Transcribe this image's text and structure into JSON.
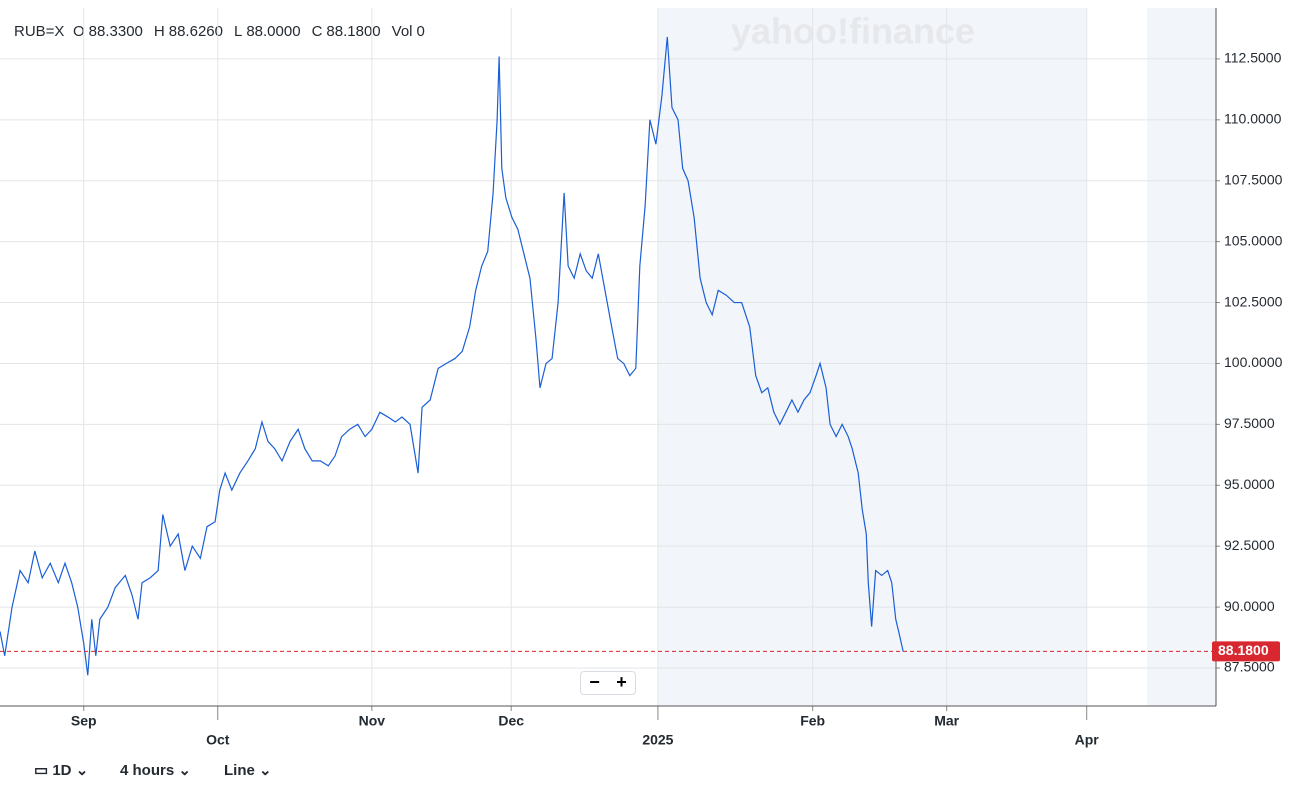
{
  "header": {
    "symbol": "RUB=X",
    "stats": [
      {
        "label": "O",
        "value": "88.3300"
      },
      {
        "label": "H",
        "value": "88.6260"
      },
      {
        "label": "L",
        "value": "88.0000"
      },
      {
        "label": "C",
        "value": "88.1800"
      },
      {
        "label": "Vol",
        "value": "0"
      }
    ]
  },
  "watermark": "yahoo!finance",
  "toolbar": {
    "range": "1D",
    "interval": "4 hours",
    "chart_type": "Line",
    "zoom_out": "−",
    "zoom_in": "+"
  },
  "chart_data": {
    "type": "line",
    "color": "#1a5fd6",
    "grid": true,
    "xlim": [
      0,
      181.5
    ],
    "xticks": [
      {
        "value": 12.5,
        "label": "Sep"
      },
      {
        "value": 32.5,
        "label": "Oct"
      },
      {
        "value": 55.5,
        "label": "Nov"
      },
      {
        "value": 76.3,
        "label": "Dec"
      },
      {
        "value": 98.2,
        "label": "2025"
      },
      {
        "value": 121.3,
        "label": "Feb"
      },
      {
        "value": 141.3,
        "label": "Mar"
      },
      {
        "value": 162.2,
        "label": "Apr"
      }
    ],
    "ylim": [
      85.94,
      114.59
    ],
    "yticks": [
      {
        "value": 87.5,
        "label": "87.5000"
      },
      {
        "value": 90,
        "label": "90.0000"
      },
      {
        "value": 92.5,
        "label": "92.5000"
      },
      {
        "value": 95,
        "label": "95.0000"
      },
      {
        "value": 97.5,
        "label": "97.5000"
      },
      {
        "value": 100,
        "label": "100.0000"
      },
      {
        "value": 102.5,
        "label": "102.5000"
      },
      {
        "value": 105,
        "label": "105.0000"
      },
      {
        "value": 107.5,
        "label": "107.5000"
      },
      {
        "value": 110,
        "label": "110.0000"
      },
      {
        "value": 112.5,
        "label": "112.5000"
      }
    ],
    "shaded": [
      [
        98.2,
        162.1
      ],
      [
        171.2,
        181.5
      ]
    ],
    "last": {
      "value": 88.18,
      "label": "88.1800",
      "color": "#d8272f"
    },
    "x": [
      0,
      0.7,
      1.8,
      3.0,
      4.2,
      5.2,
      6.3,
      7.5,
      8.7,
      9.7,
      10.7,
      11.6,
      12.5,
      13.1,
      13.7,
      14.3,
      14.9,
      16.1,
      17.2,
      18.7,
      19.7,
      20.6,
      21.2,
      22.4,
      23.6,
      24.3,
      25.4,
      26.6,
      27.6,
      28.7,
      29.9,
      30.9,
      32.1,
      32.8,
      33.6,
      34.6,
      35.8,
      37.0,
      38.1,
      39.1,
      40.0,
      41.0,
      42.1,
      43.3,
      44.5,
      45.5,
      46.6,
      47.8,
      49.0,
      50.0,
      51.0,
      52.2,
      53.4,
      54.5,
      55.5,
      56.7,
      57.9,
      59.0,
      60.0,
      61.2,
      61.8,
      62.4,
      63.0,
      64.2,
      65.4,
      66.6,
      67.9,
      69.0,
      70.1,
      71.0,
      71.9,
      72.8,
      73.6,
      74.2,
      74.5,
      74.9,
      75.5,
      76.4,
      77.3,
      78.2,
      79.1,
      80.0,
      80.6,
      81.5,
      82.4,
      83.3,
      84.2,
      84.8,
      85.7,
      86.6,
      87.5,
      88.4,
      89.3,
      90.3,
      91.3,
      92.2,
      93.1,
      94.0,
      94.9,
      95.5,
      96.3,
      97.0,
      97.9,
      98.8,
      99.6,
      100.3,
      101.2,
      101.9,
      102.7,
      103.6,
      104.5,
      105.4,
      106.3,
      107.2,
      108.4,
      109.6,
      110.7,
      111.9,
      112.8,
      113.7,
      114.6,
      115.5,
      116.4,
      117.3,
      118.2,
      119.1,
      120.0,
      120.9,
      121.8,
      122.4,
      123.3,
      123.9,
      124.8,
      125.7,
      126.6,
      127.2,
      128.1,
      128.7,
      129.3,
      129.6,
      130.1,
      130.7,
      131.6,
      132.5,
      133.1,
      133.7,
      134.3,
      134.8
    ],
    "values": [
      89.0,
      88.0,
      90.0,
      91.5,
      91.0,
      92.3,
      91.2,
      91.8,
      91.0,
      91.8,
      91.0,
      90.0,
      88.5,
      87.2,
      89.5,
      88.0,
      89.5,
      90.0,
      90.8,
      91.3,
      90.5,
      89.5,
      91.0,
      91.2,
      91.5,
      93.8,
      92.5,
      93.0,
      91.5,
      92.5,
      92.0,
      93.3,
      93.5,
      94.8,
      95.5,
      94.8,
      95.5,
      96.0,
      96.5,
      97.6,
      96.8,
      96.5,
      96.0,
      96.8,
      97.3,
      96.5,
      96.0,
      96.0,
      95.8,
      96.2,
      97.0,
      97.3,
      97.5,
      97.0,
      97.3,
      98.0,
      97.8,
      97.6,
      97.8,
      97.5,
      96.5,
      95.5,
      98.2,
      98.5,
      99.8,
      100.0,
      100.2,
      100.5,
      101.5,
      103.0,
      104.0,
      104.6,
      107.0,
      110.0,
      112.6,
      108.0,
      106.8,
      106.0,
      105.5,
      104.5,
      103.5,
      101.0,
      99.0,
      100.0,
      100.2,
      102.5,
      107.0,
      104.0,
      103.5,
      104.5,
      103.8,
      103.5,
      104.5,
      103.0,
      101.5,
      100.2,
      100.0,
      99.5,
      99.8,
      104.0,
      106.5,
      110.0,
      109.0,
      111.0,
      113.4,
      110.5,
      110.0,
      108.0,
      107.5,
      106.0,
      103.5,
      102.5,
      102.0,
      103.0,
      102.8,
      102.5,
      102.5,
      101.5,
      99.5,
      98.8,
      99.0,
      98.0,
      97.5,
      98.0,
      98.5,
      98.0,
      98.5,
      98.8,
      99.5,
      100.0,
      99.0,
      97.5,
      97.0,
      97.5,
      97.0,
      96.5,
      95.5,
      94.0,
      93.0,
      91.0,
      89.2,
      91.5,
      91.3,
      91.5,
      91.0,
      89.5,
      88.8,
      88.18
    ]
  }
}
